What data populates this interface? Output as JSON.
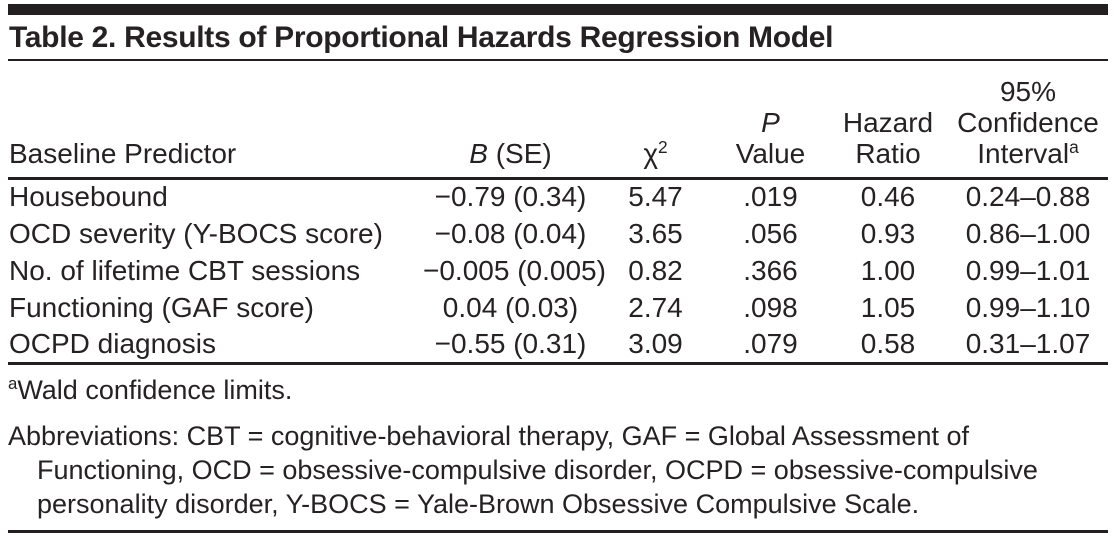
{
  "title": "Table 2. Results of Proportional Hazards Regression Model",
  "table": {
    "headers": {
      "baseline_predictor": "Baseline Predictor",
      "b_se": {
        "italic": "B",
        "rest": " (SE)"
      },
      "chi_square": {
        "base": "χ",
        "sup": "2"
      },
      "p_value": {
        "line1": "P",
        "line2": "Value"
      },
      "hazard_ratio": {
        "line1": "Hazard",
        "line2": "Ratio"
      },
      "confidence_interval": {
        "line1": "95%",
        "line2": "Confidence",
        "line3": "Interval",
        "line3_sup": "a"
      }
    },
    "rows": [
      {
        "predictor": "Housebound",
        "b_se": "−0.79 (0.34)",
        "chi_square": "5.47",
        "p_value": ".019",
        "hazard_ratio": "0.46",
        "ci": "0.24–0.88"
      },
      {
        "predictor": "OCD severity (Y-BOCS score)",
        "b_se": "−0.08 (0.04)",
        "chi_square": "3.65",
        "p_value": ".056",
        "hazard_ratio": "0.93",
        "ci": "0.86–1.00"
      },
      {
        "predictor": "No. of lifetime CBT sessions",
        "b_se": "−0.005 (0.005)",
        "chi_square": "0.82",
        "p_value": ".366",
        "hazard_ratio": "1.00",
        "ci": "0.99–1.01"
      },
      {
        "predictor": "Functioning (GAF score)",
        "b_se": "0.04 (0.03)",
        "chi_square": "2.74",
        "p_value": ".098",
        "hazard_ratio": "1.05",
        "ci": "0.99–1.10"
      },
      {
        "predictor": "OCPD diagnosis",
        "b_se": "−0.55 (0.31)",
        "chi_square": "3.09",
        "p_value": ".079",
        "hazard_ratio": "0.58",
        "ci": "0.31–1.07"
      }
    ]
  },
  "footnotes": {
    "a_marker": "a",
    "a_text": "Wald confidence limits.",
    "abbreviations_lines": [
      "Abbreviations: CBT = cognitive-behavioral therapy, GAF = Global Assessment of",
      "Functioning, OCD = obsessive-compulsive disorder, OCPD = obsessive-compulsive",
      "personality disorder, Y-BOCS = Yale-Brown Obsessive Compulsive Scale."
    ]
  },
  "colors": {
    "text": "#262223",
    "rule": "#231f20"
  }
}
